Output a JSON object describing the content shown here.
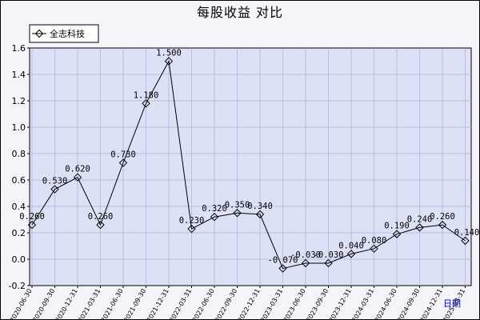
{
  "chart_data": {
    "type": "line",
    "title": "每股收益  对比",
    "xlabel": "日期",
    "ylabel": "",
    "ylim": [
      -0.2,
      1.6
    ],
    "yticks": [
      "-0.2",
      "0.0",
      "0.2",
      "0.4",
      "0.6",
      "0.8",
      "1.0",
      "1.2",
      "1.4",
      "1.6"
    ],
    "grid": true,
    "legend_position": "top-left",
    "categories": [
      "2020-06-30",
      "2020-09-30",
      "2020-12-31",
      "2021-03-31",
      "2021-06-30",
      "2021-09-30",
      "2021-12-31",
      "2022-03-31",
      "2022-06-30",
      "2022-09-30",
      "2022-12-31",
      "2023-03-31",
      "2023-06-30",
      "2023-09-30",
      "2023-12-31",
      "2024-03-31",
      "2024-06-30",
      "2024-09-30",
      "2024-12-31",
      "2025-03-31"
    ],
    "series": [
      {
        "name": "全志科技",
        "values": [
          0.26,
          0.53,
          0.62,
          0.26,
          0.73,
          1.18,
          1.5,
          0.23,
          0.32,
          0.35,
          0.34,
          -0.07,
          -0.03,
          -0.03,
          0.04,
          0.08,
          0.19,
          0.24,
          0.26,
          0.14
        ],
        "labels": [
          "0.260",
          "0.530",
          "0.620",
          "0.260",
          "0.730",
          "1.180",
          "1.500",
          "0.230",
          "0.320",
          "0.350",
          "0.340",
          "-0.070",
          "-0.030",
          "-0.030",
          "0.040",
          "0.080",
          "0.190",
          "0.240",
          "0.260",
          "0.140"
        ]
      }
    ]
  },
  "colors": {
    "plot_background": "#dde1f5",
    "outer_background": "#f4f4fa",
    "grid": "#aab2d4",
    "line": "#000000",
    "period_label": "#0000cc"
  }
}
